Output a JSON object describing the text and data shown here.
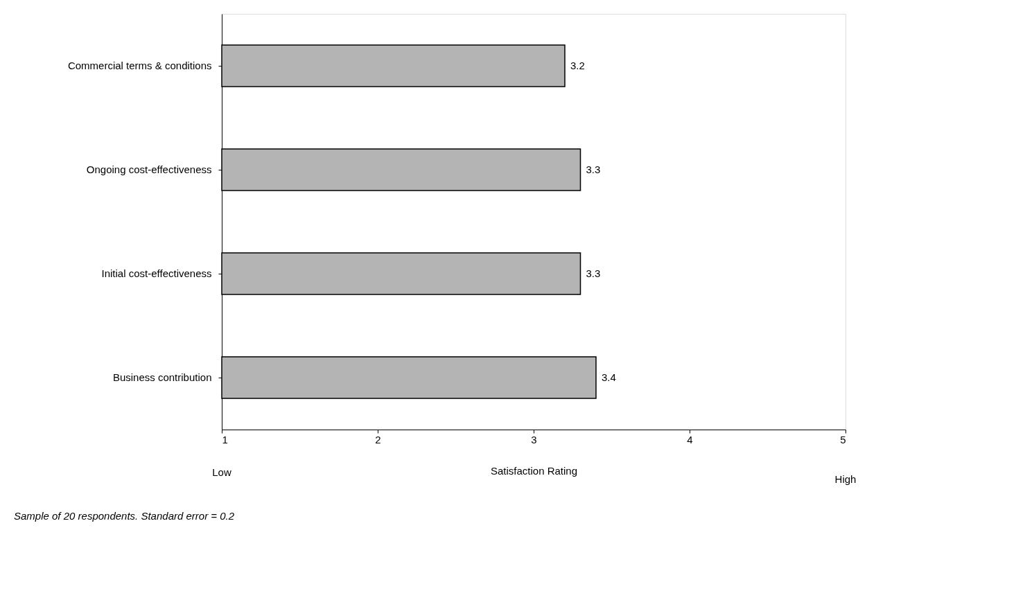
{
  "chart_data": {
    "type": "bar",
    "orientation": "horizontal",
    "xlabel": "Satisfaction Rating",
    "categories": [
      "Commercial terms & conditions",
      "Ongoing cost-effectiveness",
      "Initial cost-effectiveness",
      "Business contribution"
    ],
    "values": [
      3.2,
      3.3,
      3.3,
      3.4
    ],
    "color": "#b4b4b4",
    "data_labels": true,
    "xlim": [
      1,
      5
    ],
    "xticks": [
      1,
      2,
      3,
      4,
      5
    ],
    "grid": false,
    "annotations": [
      "Low",
      "High",
      "Sample of 20 respondents. Standard error = 0.2"
    ]
  }
}
